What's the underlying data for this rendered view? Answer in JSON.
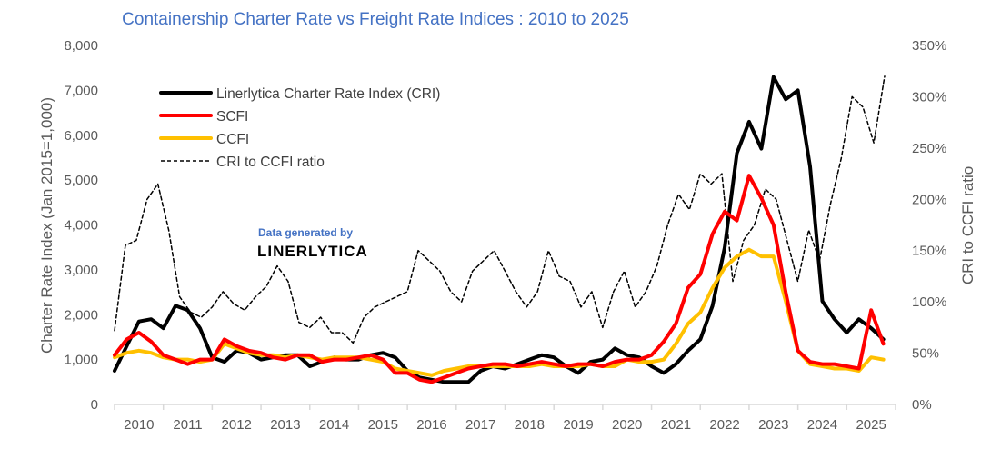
{
  "chart_data": {
    "type": "line",
    "title": "Containership Charter Rate vs Freight Rate Indices : 2010 to 2025",
    "xlabel": "",
    "ylabel": "Charter Rate Index (Jan 2015=1,000)",
    "y2label": "CRI to CCFI ratio",
    "ylim": [
      0,
      8000
    ],
    "y2lim": [
      0,
      350
    ],
    "yticks": [
      "0",
      "1,000",
      "2,000",
      "3,000",
      "4,000",
      "5,000",
      "6,000",
      "7,000",
      "8,000"
    ],
    "y2ticks": [
      "0%",
      "50%",
      "100%",
      "150%",
      "200%",
      "250%",
      "300%",
      "350%"
    ],
    "xticks": [
      "2010",
      "2011",
      "2012",
      "2013",
      "2014",
      "2015",
      "2016",
      "2017",
      "2018",
      "2019",
      "2020",
      "2021",
      "2022",
      "2023",
      "2024",
      "2025"
    ],
    "x_start": 2010,
    "x_step": 0.25,
    "grid": false,
    "legend_position": "top-left",
    "series": [
      {
        "name": "Linerlytica Charter Rate Index (CRI)",
        "axis": "left",
        "color": "#000000",
        "style": "solid",
        "values": [
          750,
          1300,
          1850,
          1900,
          1700,
          2200,
          2100,
          1700,
          1050,
          950,
          1200,
          1150,
          1000,
          1050,
          1100,
          1100,
          850,
          950,
          1050,
          1000,
          1000,
          1100,
          1150,
          1050,
          750,
          600,
          550,
          500,
          500,
          500,
          750,
          850,
          800,
          900,
          1000,
          1100,
          1050,
          850,
          700,
          950,
          1000,
          1250,
          1100,
          1050,
          850,
          700,
          900,
          1200,
          1450,
          2200,
          3500,
          5600,
          6300,
          5700,
          7300,
          6800,
          7000,
          5300,
          2300,
          1900,
          1600,
          1900,
          1700,
          1450
        ]
      },
      {
        "name": "SCFI",
        "axis": "left",
        "color": "#FF0000",
        "style": "solid",
        "values": [
          1100,
          1450,
          1600,
          1400,
          1100,
          1000,
          900,
          1000,
          1000,
          1450,
          1300,
          1200,
          1150,
          1050,
          1000,
          1100,
          1100,
          950,
          1000,
          1000,
          1050,
          1100,
          1000,
          700,
          700,
          550,
          500,
          600,
          700,
          800,
          850,
          900,
          900,
          850,
          900,
          950,
          900,
          850,
          900,
          900,
          850,
          950,
          1000,
          1000,
          1100,
          1400,
          1800,
          2600,
          2900,
          3800,
          4300,
          4100,
          5100,
          4600,
          4000,
          2500,
          1200,
          950,
          900,
          900,
          850,
          800,
          2100,
          1350
        ]
      },
      {
        "name": "CCFI",
        "axis": "left",
        "color": "#FFC000",
        "style": "solid",
        "values": [
          1050,
          1150,
          1200,
          1150,
          1050,
          1000,
          1000,
          950,
          1000,
          1350,
          1250,
          1150,
          1100,
          1100,
          1050,
          1100,
          1050,
          1000,
          1050,
          1050,
          1050,
          1000,
          950,
          800,
          750,
          700,
          650,
          750,
          800,
          850,
          850,
          850,
          850,
          850,
          850,
          900,
          850,
          850,
          850,
          900,
          850,
          850,
          1000,
          950,
          950,
          1000,
          1350,
          1800,
          2050,
          2600,
          3050,
          3300,
          3450,
          3300,
          3300,
          2300,
          1200,
          900,
          850,
          800,
          800,
          750,
          1050,
          1000
        ]
      },
      {
        "name": "CRI to CCFI ratio",
        "axis": "right",
        "color": "#000000",
        "style": "dashed",
        "values": [
          72,
          155,
          160,
          200,
          215,
          170,
          105,
          90,
          85,
          95,
          110,
          98,
          92,
          105,
          115,
          135,
          120,
          80,
          75,
          85,
          70,
          70,
          60,
          85,
          95,
          100,
          105,
          110,
          150,
          140,
          130,
          110,
          100,
          130,
          140,
          150,
          130,
          110,
          95,
          110,
          150,
          125,
          120,
          95,
          110,
          75,
          110,
          130,
          95,
          110,
          135,
          175,
          205,
          190,
          225,
          215,
          225,
          120,
          160,
          175,
          210,
          200,
          160,
          120,
          170,
          140,
          195,
          240,
          300,
          290,
          255,
          320
        ]
      }
    ],
    "ratio_x_step": 0.2222
  },
  "watermark": {
    "line1": "Data generated by",
    "line2": "LINERLYTICA"
  }
}
